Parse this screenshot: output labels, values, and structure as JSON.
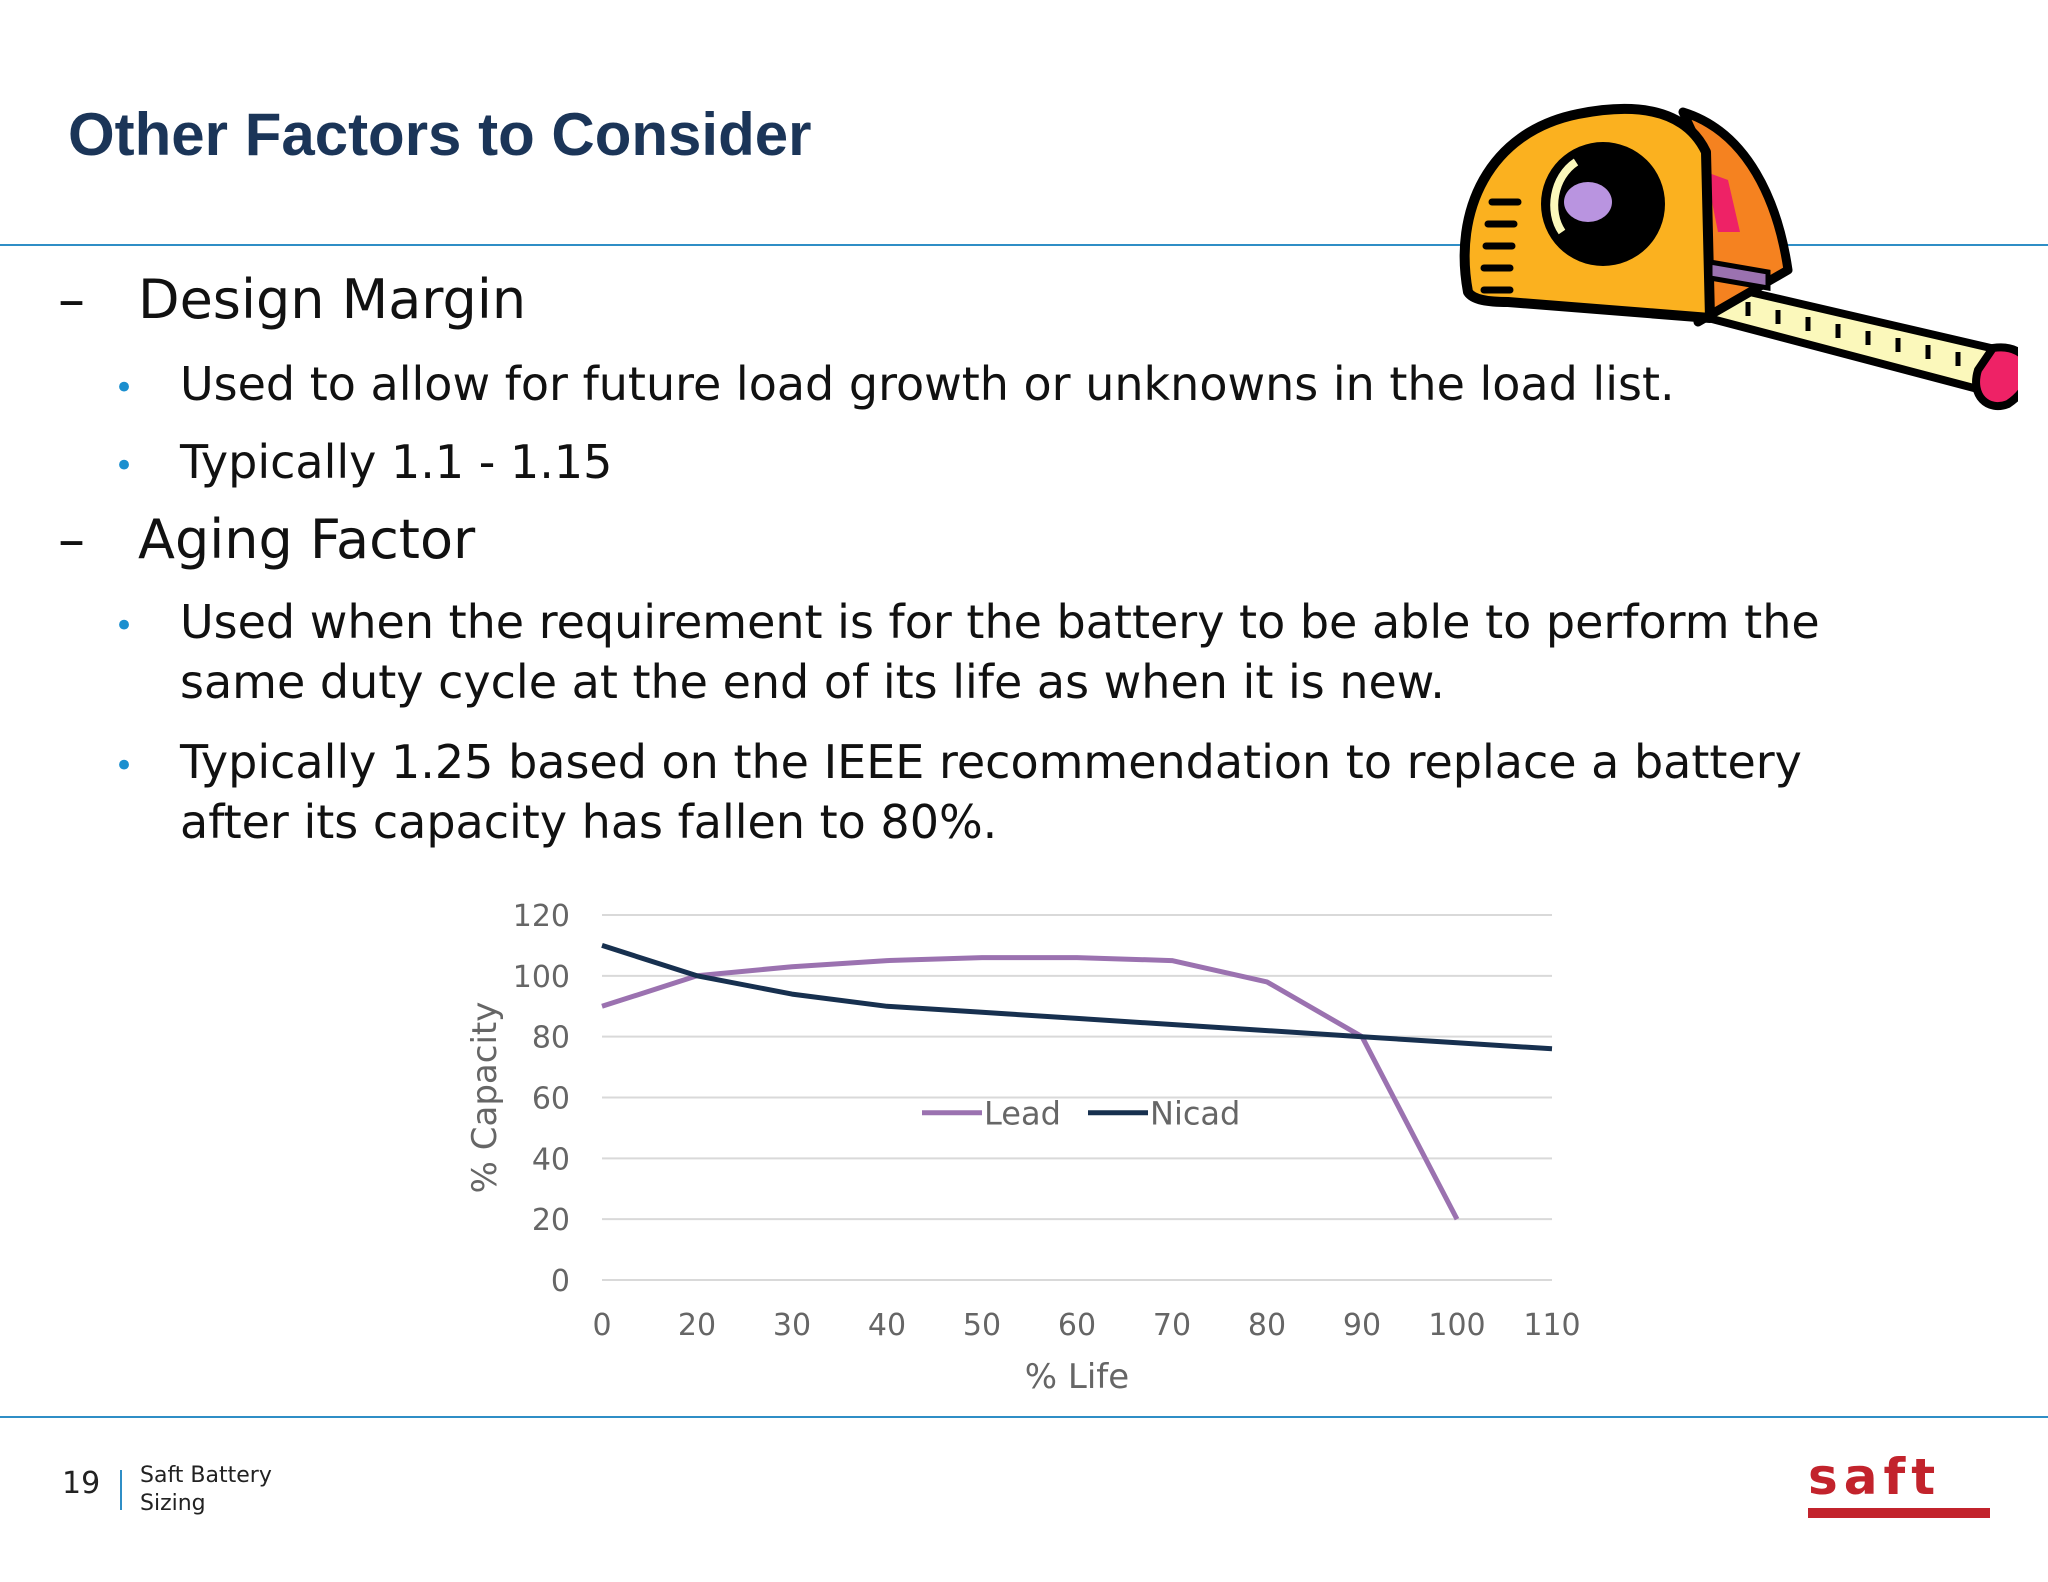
{
  "title": "Other Factors to Consider",
  "sections": [
    {
      "dash": "–",
      "heading": "Design Margin",
      "bullets": [
        {
          "lines": [
            "Used to allow for future load growth or unknowns in the load list."
          ]
        },
        {
          "lines": [
            "Typically 1.1 - 1.15"
          ]
        }
      ]
    },
    {
      "dash": "–",
      "heading": "Aging Factor",
      "bullets": [
        {
          "lines": [
            "Used when the requirement is for the battery to be able to perform the",
            "same duty cycle at the end of its life as when it is new."
          ]
        },
        {
          "lines": [
            "Typically 1.25 based on the IEEE recommendation to replace a battery",
            "after its capacity has fallen to 80%."
          ]
        }
      ]
    }
  ],
  "bullet_symbol": "•",
  "chart_data": {
    "type": "line",
    "categories": [
      "0",
      "20",
      "30",
      "40",
      "50",
      "60",
      "70",
      "80",
      "90",
      "100",
      "110"
    ],
    "series": [
      {
        "name": "Lead",
        "color": "#9b72b0",
        "values": [
          90,
          100,
          103,
          105,
          106,
          106,
          105,
          98,
          80,
          20,
          null
        ]
      },
      {
        "name": "Nicad",
        "color": "#17304f",
        "values": [
          110,
          100,
          94,
          90,
          88,
          86,
          84,
          82,
          80,
          78,
          76
        ]
      }
    ],
    "xlabel": "% Life",
    "ylabel": "% Capacity",
    "ylim": [
      0,
      120
    ],
    "yticks": [
      0,
      20,
      40,
      60,
      80,
      100,
      120
    ],
    "grid": true,
    "legend_position": "center"
  },
  "footer": {
    "page_number": "19",
    "text": "Saft Battery Sizing",
    "logo": "saft"
  },
  "colors": {
    "title": "#1b3558",
    "rule": "#2f8ec6",
    "bullet": "#1b8fcf",
    "logo": "#c2232c"
  },
  "icons": {
    "clipart": "tape-measure-icon"
  }
}
